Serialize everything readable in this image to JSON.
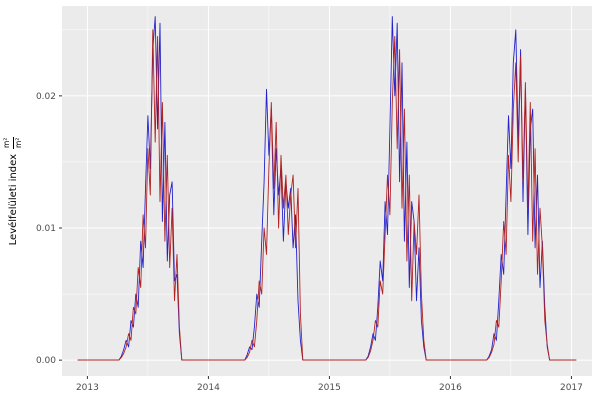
{
  "chart": {
    "ylabel_text": "Levélfelületi index",
    "ylabel_frac_top": "m²",
    "ylabel_frac_bottom": "m²"
  },
  "chart_data": {
    "type": "line",
    "title": "",
    "xlabel": "",
    "ylabel": "Levélfelületi index (m²/m²)",
    "legend": "none",
    "grid": "on",
    "panel_bg": "#EBEBEB",
    "grid_color": "#FFFFFF",
    "tick_color": "#333333",
    "label_color": "#4D4D4D",
    "x_domain": [
      2012.79,
      2017.17
    ],
    "y_domain": [
      -0.0012,
      0.0268
    ],
    "x_ticks": {
      "values": [
        2013,
        2014,
        2015,
        2016,
        2017
      ],
      "labels": [
        "2013",
        "2014",
        "2015",
        "2016",
        "2017"
      ]
    },
    "x_minor": [
      2013.5,
      2014.5,
      2015.5,
      2016.5
    ],
    "y_ticks": {
      "values": [
        0,
        0.01,
        0.02
      ],
      "labels": [
        "0.00",
        "0.01",
        "0.02"
      ]
    },
    "y_minor": [
      0.005,
      0.015,
      0.025
    ],
    "data_x_extent": [
      2012.92,
      2017.04
    ],
    "baseline": 0,
    "sample_step": 0.02,
    "series": [
      {
        "name": "blue-line",
        "color": "#2323CD",
        "segments": [
          {
            "x0": 2013.26,
            "y": [
              0,
              0.0003,
              0.0008,
              0.0015,
              0.001,
              0.003,
              0.0025,
              0.005,
              0.004,
              0.009,
              0.007,
              0.013,
              0.0185,
              0.0145,
              0.0235,
              0.026,
              0.0175,
              0.0255,
              0.0105,
              0.018,
              0.0075,
              0.0125,
              0.0135,
              0.006,
              0.0065,
              0.002,
              0
            ]
          },
          {
            "x0": 2014.3,
            "y": [
              0,
              0.0004,
              0.001,
              0.0008,
              0.0025,
              0.005,
              0.004,
              0.009,
              0.0135,
              0.0205,
              0.0155,
              0.019,
              0.011,
              0.016,
              0.0125,
              0.0145,
              0.009,
              0.0135,
              0.0115,
              0.013,
              0.0085,
              0.011,
              0.0045,
              0.0015,
              0
            ]
          },
          {
            "x0": 2015.3,
            "y": [
              0,
              0.0003,
              0.001,
              0.002,
              0.0015,
              0.004,
              0.0075,
              0.006,
              0.012,
              0.0095,
              0.0175,
              0.026,
              0.02,
              0.0255,
              0.0135,
              0.0225,
              0.009,
              0.0165,
              0.0055,
              0.012,
              0.0105,
              0.0045,
              0.0085,
              0.003,
              0.001,
              0
            ]
          },
          {
            "x0": 2016.3,
            "y": [
              0,
              0.0003,
              0.0008,
              0.002,
              0.0015,
              0.0045,
              0.008,
              0.0065,
              0.0125,
              0.0185,
              0.0145,
              0.0225,
              0.025,
              0.0165,
              0.0235,
              0.012,
              0.0205,
              0.0095,
              0.0175,
              0.019,
              0.0085,
              0.014,
              0.0055,
              0.009,
              0.004,
              0.001,
              0
            ]
          }
        ]
      },
      {
        "name": "red-line",
        "color": "#B22222",
        "segments": [
          {
            "x0": 2013.26,
            "y": [
              0,
              0.0002,
              0.0005,
              0.001,
              0.002,
              0.0015,
              0.004,
              0.0035,
              0.007,
              0.0055,
              0.011,
              0.0085,
              0.016,
              0.0125,
              0.025,
              0.0165,
              0.0245,
              0.012,
              0.0195,
              0.009,
              0.0155,
              0.007,
              0.0115,
              0.0045,
              0.008,
              0.0025,
              0
            ]
          },
          {
            "x0": 2014.3,
            "y": [
              0,
              0.0002,
              0.0006,
              0.0015,
              0.001,
              0.003,
              0.006,
              0.005,
              0.01,
              0.008,
              0.0145,
              0.0195,
              0.013,
              0.018,
              0.01,
              0.0155,
              0.0115,
              0.014,
              0.0095,
              0.0125,
              0.014,
              0.0085,
              0.013,
              0.0035,
              0
            ]
          },
          {
            "x0": 2015.3,
            "y": [
              0,
              0.0002,
              0.0007,
              0.0015,
              0.003,
              0.0025,
              0.006,
              0.005,
              0.0095,
              0.014,
              0.011,
              0.0195,
              0.0245,
              0.016,
              0.0235,
              0.0115,
              0.019,
              0.0075,
              0.014,
              0.0045,
              0.0105,
              0.008,
              0.0125,
              0.005,
              0.0015,
              0
            ]
          },
          {
            "x0": 2016.3,
            "y": [
              0,
              0.0002,
              0.0006,
              0.0012,
              0.003,
              0.0025,
              0.006,
              0.0105,
              0.008,
              0.0155,
              0.012,
              0.019,
              0.0225,
              0.015,
              0.023,
              0.0135,
              0.021,
              0.0115,
              0.0195,
              0.009,
              0.016,
              0.0065,
              0.0115,
              0.0085,
              0.003,
              0.0012,
              0
            ]
          }
        ]
      }
    ]
  }
}
